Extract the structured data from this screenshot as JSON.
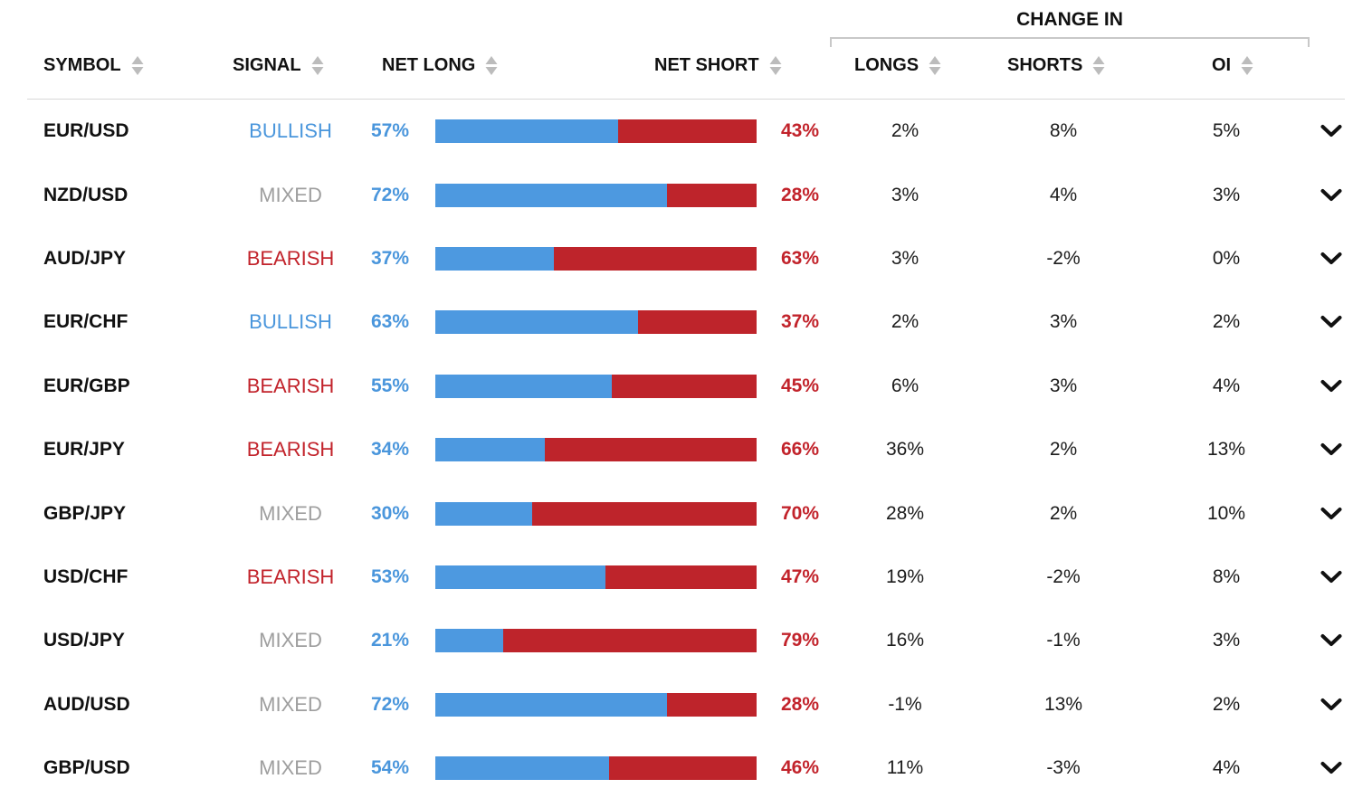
{
  "header": {
    "group_label": "CHANGE IN",
    "columns": [
      {
        "label": "SYMBOL"
      },
      {
        "label": "SIGNAL"
      },
      {
        "label": "NET LONG"
      },
      {
        "label": "NET SHORT"
      },
      {
        "label": "LONGS"
      },
      {
        "label": "SHORTS"
      },
      {
        "label": "OI"
      }
    ],
    "sort_icon": "sort-asc-desc-triangles"
  },
  "colors": {
    "bullish": "#4A96DC",
    "bearish_text": "#C2232B",
    "mixed": "#9E9E9E",
    "long_bar": "#4D99E0",
    "short_bar": "#BE242B",
    "sort_icon": "#BCBCBC",
    "header_text": "#111111",
    "body_text": "#1C1C1C",
    "separator": "#D8D8D8",
    "bracket": "#C8C8C8"
  },
  "rows": [
    {
      "symbol": "EUR/USD",
      "signal": "BULLISH",
      "signal_class": "bullish",
      "net_long_pct": 57,
      "net_long": "57%",
      "net_short": "43%",
      "longs": "2%",
      "shorts": "8%",
      "oi": "5%"
    },
    {
      "symbol": "NZD/USD",
      "signal": "MIXED",
      "signal_class": "mixed",
      "net_long_pct": 72,
      "net_long": "72%",
      "net_short": "28%",
      "longs": "3%",
      "shorts": "4%",
      "oi": "3%"
    },
    {
      "symbol": "AUD/JPY",
      "signal": "BEARISH",
      "signal_class": "bearish",
      "net_long_pct": 37,
      "net_long": "37%",
      "net_short": "63%",
      "longs": "3%",
      "shorts": "-2%",
      "oi": "0%"
    },
    {
      "symbol": "EUR/CHF",
      "signal": "BULLISH",
      "signal_class": "bullish",
      "net_long_pct": 63,
      "net_long": "63%",
      "net_short": "37%",
      "longs": "2%",
      "shorts": "3%",
      "oi": "2%"
    },
    {
      "symbol": "EUR/GBP",
      "signal": "BEARISH",
      "signal_class": "bearish",
      "net_long_pct": 55,
      "net_long": "55%",
      "net_short": "45%",
      "longs": "6%",
      "shorts": "3%",
      "oi": "4%"
    },
    {
      "symbol": "EUR/JPY",
      "signal": "BEARISH",
      "signal_class": "bearish",
      "net_long_pct": 34,
      "net_long": "34%",
      "net_short": "66%",
      "longs": "36%",
      "shorts": "2%",
      "oi": "13%"
    },
    {
      "symbol": "GBP/JPY",
      "signal": "MIXED",
      "signal_class": "mixed",
      "net_long_pct": 30,
      "net_long": "30%",
      "net_short": "70%",
      "longs": "28%",
      "shorts": "2%",
      "oi": "10%"
    },
    {
      "symbol": "USD/CHF",
      "signal": "BEARISH",
      "signal_class": "bearish",
      "net_long_pct": 53,
      "net_long": "53%",
      "net_short": "47%",
      "longs": "19%",
      "shorts": "-2%",
      "oi": "8%"
    },
    {
      "symbol": "USD/JPY",
      "signal": "MIXED",
      "signal_class": "mixed",
      "net_long_pct": 21,
      "net_long": "21%",
      "net_short": "79%",
      "longs": "16%",
      "shorts": "-1%",
      "oi": "3%"
    },
    {
      "symbol": "AUD/USD",
      "signal": "MIXED",
      "signal_class": "mixed",
      "net_long_pct": 72,
      "net_long": "72%",
      "net_short": "28%",
      "longs": "-1%",
      "shorts": "13%",
      "oi": "2%"
    },
    {
      "symbol": "GBP/USD",
      "signal": "MIXED",
      "signal_class": "mixed",
      "net_long_pct": 54,
      "net_long": "54%",
      "net_short": "46%",
      "longs": "11%",
      "shorts": "-3%",
      "oi": "4%"
    }
  ]
}
